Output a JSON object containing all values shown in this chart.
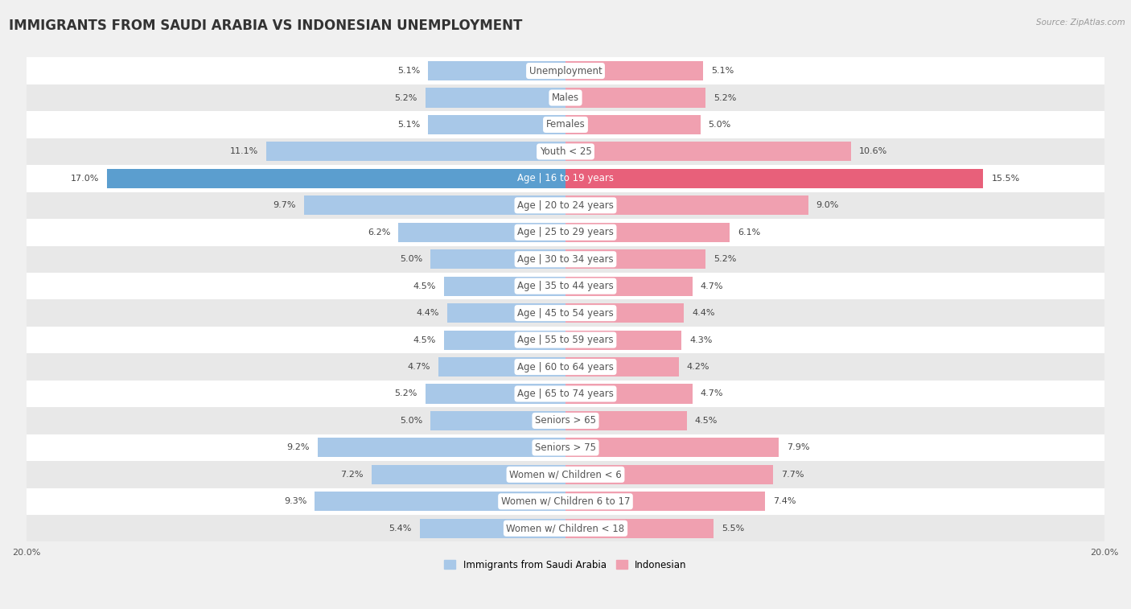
{
  "title": "IMMIGRANTS FROM SAUDI ARABIA VS INDONESIAN UNEMPLOYMENT",
  "source": "Source: ZipAtlas.com",
  "categories": [
    "Unemployment",
    "Males",
    "Females",
    "Youth < 25",
    "Age | 16 to 19 years",
    "Age | 20 to 24 years",
    "Age | 25 to 29 years",
    "Age | 30 to 34 years",
    "Age | 35 to 44 years",
    "Age | 45 to 54 years",
    "Age | 55 to 59 years",
    "Age | 60 to 64 years",
    "Age | 65 to 74 years",
    "Seniors > 65",
    "Seniors > 75",
    "Women w/ Children < 6",
    "Women w/ Children 6 to 17",
    "Women w/ Children < 18"
  ],
  "left_values": [
    5.1,
    5.2,
    5.1,
    11.1,
    17.0,
    9.7,
    6.2,
    5.0,
    4.5,
    4.4,
    4.5,
    4.7,
    5.2,
    5.0,
    9.2,
    7.2,
    9.3,
    5.4
  ],
  "right_values": [
    5.1,
    5.2,
    5.0,
    10.6,
    15.5,
    9.0,
    6.1,
    5.2,
    4.7,
    4.4,
    4.3,
    4.2,
    4.7,
    4.5,
    7.9,
    7.7,
    7.4,
    5.5
  ],
  "left_color": "#a8c8e8",
  "right_color": "#f0a0b0",
  "left_highlight_color": "#5b9ecf",
  "right_highlight_color": "#e8607a",
  "highlight_row": 4,
  "xlim": 20.0,
  "bar_height": 0.72,
  "background_color": "#f0f0f0",
  "row_bg_light": "#ffffff",
  "row_bg_dark": "#e8e8e8",
  "legend_left": "Immigrants from Saudi Arabia",
  "legend_right": "Indonesian",
  "title_fontsize": 12,
  "label_fontsize": 8.5,
  "value_fontsize": 8,
  "source_fontsize": 7.5
}
